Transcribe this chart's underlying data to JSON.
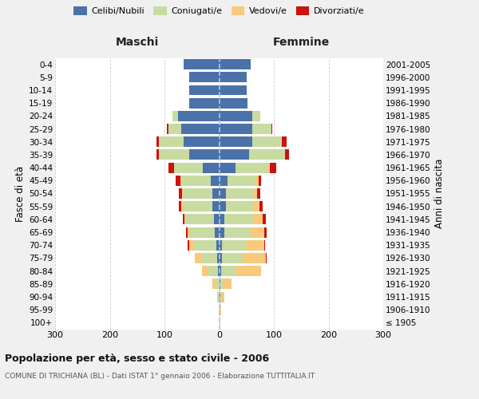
{
  "age_groups": [
    "100+",
    "95-99",
    "90-94",
    "85-89",
    "80-84",
    "75-79",
    "70-74",
    "65-69",
    "60-64",
    "55-59",
    "50-54",
    "45-49",
    "40-44",
    "35-39",
    "30-34",
    "25-29",
    "20-24",
    "15-19",
    "10-14",
    "5-9",
    "0-4"
  ],
  "birth_years": [
    "≤ 1905",
    "1906-1910",
    "1911-1915",
    "1916-1920",
    "1921-1925",
    "1926-1930",
    "1931-1935",
    "1936-1940",
    "1941-1945",
    "1946-1950",
    "1951-1955",
    "1956-1960",
    "1961-1965",
    "1966-1970",
    "1971-1975",
    "1976-1980",
    "1981-1985",
    "1986-1990",
    "1991-1995",
    "1996-2000",
    "2001-2005"
  ],
  "male_celibi": [
    0,
    0,
    0,
    0,
    2,
    3,
    5,
    8,
    10,
    12,
    12,
    15,
    30,
    55,
    65,
    70,
    75,
    55,
    55,
    55,
    65
  ],
  "male_coniugati": [
    0,
    1,
    2,
    5,
    18,
    30,
    42,
    45,
    50,
    55,
    55,
    55,
    52,
    55,
    45,
    22,
    10,
    0,
    0,
    0,
    0
  ],
  "male_vedovi": [
    0,
    0,
    2,
    8,
    12,
    12,
    8,
    5,
    3,
    2,
    1,
    1,
    0,
    0,
    0,
    0,
    0,
    0,
    0,
    0,
    0
  ],
  "male_divorziati": [
    0,
    0,
    0,
    0,
    0,
    0,
    2,
    2,
    4,
    5,
    6,
    8,
    10,
    5,
    5,
    3,
    0,
    0,
    0,
    0,
    0
  ],
  "female_celibi": [
    0,
    0,
    2,
    2,
    3,
    5,
    5,
    10,
    10,
    12,
    12,
    15,
    30,
    55,
    60,
    60,
    60,
    52,
    50,
    50,
    58
  ],
  "female_coniugati": [
    0,
    1,
    2,
    5,
    28,
    38,
    45,
    48,
    52,
    50,
    50,
    52,
    60,
    65,
    55,
    35,
    15,
    0,
    0,
    0,
    0
  ],
  "female_vedovi": [
    2,
    3,
    5,
    15,
    45,
    42,
    32,
    25,
    18,
    12,
    8,
    5,
    2,
    0,
    0,
    0,
    0,
    0,
    0,
    0,
    0
  ],
  "female_divorziati": [
    0,
    0,
    0,
    0,
    0,
    2,
    2,
    4,
    5,
    5,
    5,
    5,
    12,
    8,
    8,
    2,
    0,
    0,
    0,
    0,
    0
  ],
  "color_celibi": "#4a72a8",
  "color_coniugati": "#c8dba0",
  "color_vedovi": "#f8c97a",
  "color_divorziati": "#cc1111",
  "title": "Popolazione per età, sesso e stato civile - 2006",
  "subtitle": "COMUNE DI TRICHIANA (BL) - Dati ISTAT 1° gennaio 2006 - Elaborazione TUTTITALIA.IT",
  "label_maschi": "Maschi",
  "label_femmine": "Femmine",
  "ylabel_left": "Fasce di età",
  "ylabel_right": "Anni di nascita",
  "legend_labels": [
    "Celibi/Nubili",
    "Coniugati/e",
    "Vedovi/e",
    "Divorziati/e"
  ],
  "xlim": 300,
  "bg_color": "#f0f0f0",
  "plot_bg": "#ffffff",
  "grid_color": "#cccccc"
}
